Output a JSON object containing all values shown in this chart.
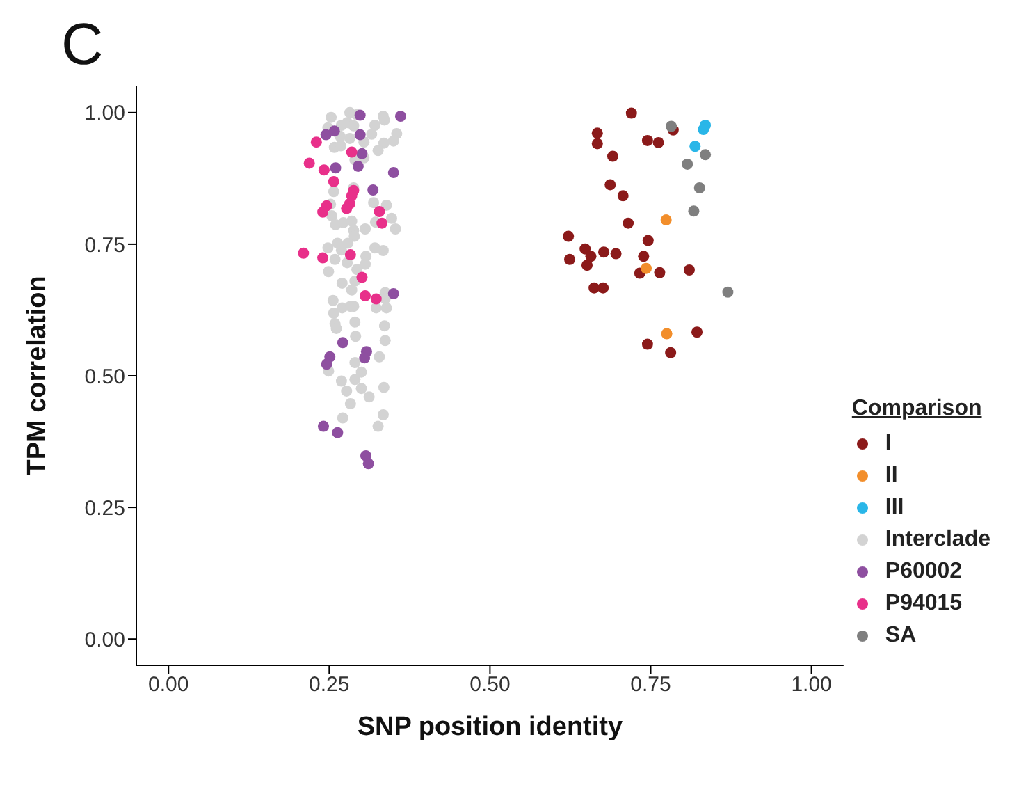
{
  "chart_data": {
    "type": "scatter",
    "title": "C",
    "xlabel": "SNP position identity",
    "ylabel": "TPM correlation",
    "legend_title": "Comparison",
    "legend": "right",
    "grid": false,
    "marker": "circle",
    "xlim": [
      -0.05,
      1.05
    ],
    "xticks": [
      {
        "value": 0,
        "label": "0.00"
      },
      {
        "value": 0.25,
        "label": "0.25"
      },
      {
        "value": 0.5,
        "label": "0.50"
      },
      {
        "value": 0.75,
        "label": "0.75"
      },
      {
        "value": 1,
        "label": "1.00"
      }
    ],
    "ylim": [
      -0.05,
      1.05
    ],
    "yticks": [
      {
        "value": 0,
        "label": "0.00"
      },
      {
        "value": 0.25,
        "label": "0.25"
      },
      {
        "value": 0.5,
        "label": "0.50"
      },
      {
        "value": 0.75,
        "label": "0.75"
      },
      {
        "value": 1,
        "label": "1.00"
      }
    ],
    "series": [
      {
        "name": "I",
        "color": "#8b1a1a",
        "x": [
          0.72,
          0.667,
          0.667,
          0.745,
          0.762,
          0.785,
          0.691,
          0.687,
          0.707,
          0.715,
          0.622,
          0.746,
          0.648,
          0.657,
          0.677,
          0.696,
          0.624,
          0.651,
          0.739,
          0.733,
          0.764,
          0.81,
          0.662,
          0.676,
          0.745,
          0.822,
          0.781
        ],
        "values": [
          0.999,
          0.961,
          0.941,
          0.947,
          0.943,
          0.967,
          0.917,
          0.863,
          0.842,
          0.79,
          0.765,
          0.757,
          0.741,
          0.727,
          0.735,
          0.732,
          0.721,
          0.71,
          0.727,
          0.695,
          0.696,
          0.701,
          0.667,
          0.667,
          0.56,
          0.583,
          0.544
        ]
      },
      {
        "name": "II",
        "color": "#f28e2b",
        "x": [
          0.774,
          0.743,
          0.775
        ],
        "values": [
          0.796,
          0.704,
          0.58
        ]
      },
      {
        "name": "III",
        "color": "#29b6e8",
        "x": [
          0.835,
          0.832,
          0.819
        ],
        "values": [
          0.976,
          0.968,
          0.936
        ]
      },
      {
        "name": "Interclade",
        "color": "#d3d3d3",
        "x": [
          0.253,
          0.282,
          0.293,
          0.248,
          0.269,
          0.278,
          0.288,
          0.321,
          0.334,
          0.336,
          0.267,
          0.282,
          0.355,
          0.316,
          0.258,
          0.268,
          0.304,
          0.335,
          0.35,
          0.326,
          0.29,
          0.304,
          0.257,
          0.288,
          0.319,
          0.339,
          0.252,
          0.254,
          0.26,
          0.272,
          0.285,
          0.288,
          0.306,
          0.322,
          0.347,
          0.353,
          0.289,
          0.263,
          0.279,
          0.248,
          0.269,
          0.321,
          0.334,
          0.259,
          0.278,
          0.307,
          0.306,
          0.249,
          0.293,
          0.27,
          0.29,
          0.285,
          0.337,
          0.256,
          0.257,
          0.27,
          0.283,
          0.288,
          0.29,
          0.259,
          0.261,
          0.291,
          0.336,
          0.337,
          0.323,
          0.339,
          0.337,
          0.328,
          0.29,
          0.3,
          0.249,
          0.269,
          0.29,
          0.277,
          0.3,
          0.335,
          0.312,
          0.283,
          0.271,
          0.334,
          0.326
        ],
        "values": [
          0.991,
          1.0,
          0.996,
          0.971,
          0.976,
          0.981,
          0.975,
          0.976,
          0.993,
          0.986,
          0.955,
          0.951,
          0.96,
          0.959,
          0.934,
          0.937,
          0.944,
          0.942,
          0.946,
          0.928,
          0.91,
          0.914,
          0.85,
          0.857,
          0.829,
          0.824,
          0.826,
          0.804,
          0.787,
          0.791,
          0.794,
          0.776,
          0.779,
          0.792,
          0.799,
          0.779,
          0.765,
          0.752,
          0.752,
          0.743,
          0.739,
          0.743,
          0.738,
          0.721,
          0.715,
          0.727,
          0.712,
          0.698,
          0.702,
          0.676,
          0.68,
          0.663,
          0.658,
          0.643,
          0.619,
          0.629,
          0.632,
          0.632,
          0.602,
          0.599,
          0.59,
          0.575,
          0.595,
          0.567,
          0.629,
          0.629,
          0.647,
          0.536,
          0.525,
          0.507,
          0.509,
          0.49,
          0.493,
          0.471,
          0.476,
          0.478,
          0.46,
          0.447,
          0.42,
          0.426,
          0.404
        ]
      },
      {
        "name": "P60002",
        "color": "#8e4fa0",
        "x": [
          0.298,
          0.361,
          0.245,
          0.258,
          0.298,
          0.301,
          0.26,
          0.295,
          0.35,
          0.318,
          0.35,
          0.271,
          0.308,
          0.305,
          0.251,
          0.246,
          0.241,
          0.263,
          0.307,
          0.311
        ],
        "values": [
          0.995,
          0.993,
          0.958,
          0.965,
          0.958,
          0.922,
          0.895,
          0.898,
          0.886,
          0.853,
          0.656,
          0.563,
          0.546,
          0.534,
          0.536,
          0.522,
          0.404,
          0.392,
          0.348,
          0.333
        ]
      },
      {
        "name": "P94015",
        "color": "#e8308a",
        "x": [
          0.23,
          0.285,
          0.219,
          0.242,
          0.257,
          0.288,
          0.285,
          0.282,
          0.277,
          0.246,
          0.24,
          0.328,
          0.332,
          0.21,
          0.24,
          0.283,
          0.301,
          0.306,
          0.323
        ],
        "values": [
          0.944,
          0.925,
          0.904,
          0.891,
          0.869,
          0.852,
          0.842,
          0.827,
          0.818,
          0.823,
          0.811,
          0.812,
          0.79,
          0.733,
          0.724,
          0.73,
          0.687,
          0.652,
          0.646
        ]
      },
      {
        "name": "SA",
        "color": "#7f7f7f",
        "x": [
          0.782,
          0.835,
          0.807,
          0.826,
          0.817,
          0.87
        ],
        "values": [
          0.974,
          0.92,
          0.902,
          0.857,
          0.813,
          0.659
        ]
      }
    ]
  }
}
